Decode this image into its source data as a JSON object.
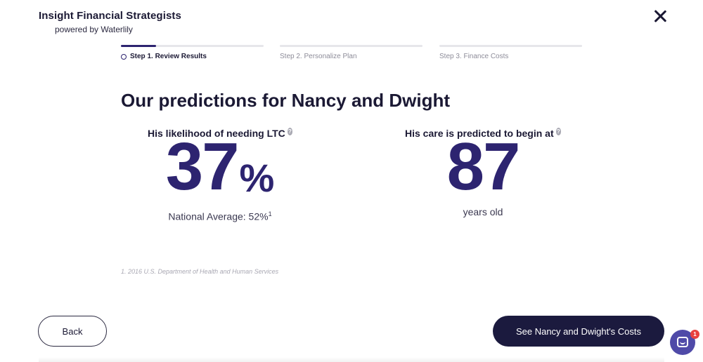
{
  "header": {
    "brand_name": "Insight Financial Strategists",
    "brand_sub": "powered by Waterlily"
  },
  "stepper": {
    "steps": [
      {
        "label": "Step 1. Review Results",
        "active": true
      },
      {
        "label": "Step 2. Personalize Plan",
        "active": false
      },
      {
        "label": "Step 3. Finance Costs",
        "active": false
      }
    ]
  },
  "main": {
    "headline": "Our predictions for Nancy and Dwight",
    "likelihood": {
      "title": "His likelihood of needing LTC",
      "value": "37",
      "unit": "%",
      "national_label": "National Average: 52%",
      "footnote_marker": "1"
    },
    "care_start": {
      "title": "His care is predicted to begin at",
      "value": "87",
      "unit_text": "years old"
    },
    "footnote": "1. 2016 U.S. Department of Health and Human Services",
    "help_glyph": "?"
  },
  "footer": {
    "back_label": "Back",
    "primary_label": "See Nancy and Dwight's Costs"
  },
  "chat": {
    "badge_count": "1"
  },
  "colors": {
    "accent": "#2d2470",
    "primary_button": "#1b1a3e",
    "chat": "#4f4aa8",
    "badge": "#e8413f"
  },
  "icons": {
    "close": "close-icon",
    "help": "help-icon",
    "chat": "chat-icon"
  }
}
